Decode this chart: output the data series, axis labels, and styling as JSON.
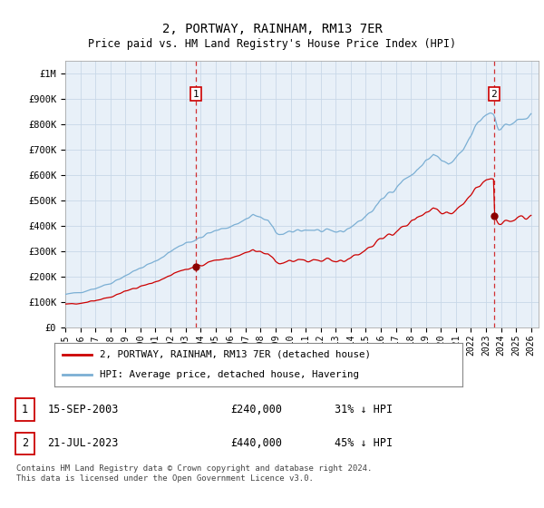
{
  "title": "2, PORTWAY, RAINHAM, RM13 7ER",
  "subtitle": "Price paid vs. HM Land Registry's House Price Index (HPI)",
  "ylim": [
    0,
    1050000
  ],
  "xlim_start": 1995.0,
  "xlim_end": 2026.5,
  "yticks": [
    0,
    100000,
    200000,
    300000,
    400000,
    500000,
    600000,
    700000,
    800000,
    900000,
    1000000
  ],
  "ytick_labels": [
    "£0",
    "£100K",
    "£200K",
    "£300K",
    "£400K",
    "£500K",
    "£600K",
    "£700K",
    "£800K",
    "£900K",
    "£1M"
  ],
  "xticks": [
    1995,
    1996,
    1997,
    1998,
    1999,
    2000,
    2001,
    2002,
    2003,
    2004,
    2005,
    2006,
    2007,
    2008,
    2009,
    2010,
    2011,
    2012,
    2013,
    2014,
    2015,
    2016,
    2017,
    2018,
    2019,
    2020,
    2021,
    2022,
    2023,
    2024,
    2025,
    2026
  ],
  "hpi_color": "#7bafd4",
  "price_color": "#cc0000",
  "vline_color": "#cc0000",
  "marker_color": "#8b0000",
  "chart_bg": "#e8f0f8",
  "transaction1_x": 2003.71,
  "transaction1_y": 240000,
  "transaction2_x": 2023.54,
  "transaction2_y": 440000,
  "legend_line1": "2, PORTWAY, RAINHAM, RM13 7ER (detached house)",
  "legend_line2": "HPI: Average price, detached house, Havering",
  "table_row1": [
    "1",
    "15-SEP-2003",
    "£240,000",
    "31% ↓ HPI"
  ],
  "table_row2": [
    "2",
    "21-JUL-2023",
    "£440,000",
    "45% ↓ HPI"
  ],
  "footer": "Contains HM Land Registry data © Crown copyright and database right 2024.\nThis data is licensed under the Open Government Licence v3.0.",
  "background_color": "#ffffff",
  "grid_color": "#c8d8e8"
}
